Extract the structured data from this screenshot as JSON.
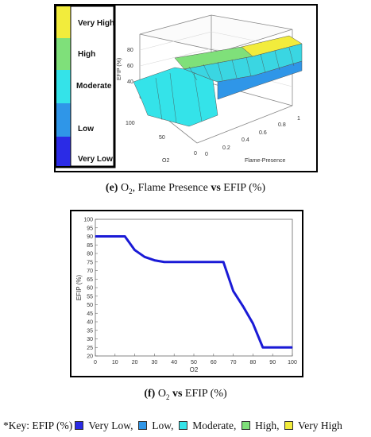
{
  "colors": {
    "very_high": "#f2ec3c",
    "high": "#7fe07a",
    "moderate": "#34e3e9",
    "low": "#2f96e8",
    "very_low": "#2b2be6",
    "line": "#1a1ad6"
  },
  "caption_e": {
    "letter": "(e)",
    "o": "O",
    "sub": "2",
    "mid": ", Flame Presence ",
    "vs": "vs",
    "end": " EFIP (%)"
  },
  "caption_f": {
    "letter": "(f)",
    "o": "O",
    "sub": "2",
    "vs": "vs",
    "end": " EFIP (%)"
  },
  "key": {
    "prefix": "*Key: EFIP (%)",
    "items": [
      {
        "label": "Very Low,",
        "color": "#2b2be6"
      },
      {
        "label": "Low,",
        "color": "#2f96e8"
      },
      {
        "label": "Moderate,",
        "color": "#34e3e9"
      },
      {
        "label": "High,",
        "color": "#7fe07a"
      },
      {
        "label": "Very High",
        "color": "#f2ec3c"
      }
    ]
  },
  "chart_data": [
    {
      "type": "surface",
      "legend": [
        "Very High",
        "High",
        "Moderate",
        "Low",
        "Very Low"
      ],
      "zlabel": "EFIP (%)",
      "xlabel": "Flame-Presence",
      "ylabel": "O2",
      "z_ticks": [
        "80",
        "60",
        "40"
      ],
      "y_ticks": [
        "100",
        "50",
        "0"
      ],
      "x_ticks": [
        "0",
        "0.2",
        "0.4",
        "0.6",
        "0.8",
        "1"
      ]
    },
    {
      "type": "line",
      "xlabel": "O2",
      "ylabel": "EFIP (%)",
      "xlim": [
        0,
        100
      ],
      "ylim": [
        20,
        100
      ],
      "x_ticks": [
        0,
        10,
        20,
        30,
        40,
        50,
        60,
        70,
        80,
        90,
        100
      ],
      "y_ticks": [
        20,
        25,
        30,
        35,
        40,
        45,
        50,
        55,
        60,
        65,
        70,
        75,
        80,
        85,
        90,
        95,
        100
      ],
      "grid": false,
      "x": [
        0,
        15,
        20,
        25,
        30,
        35,
        40,
        50,
        60,
        65,
        70,
        75,
        80,
        85,
        90,
        100
      ],
      "y": [
        90,
        90,
        82,
        78,
        76,
        75,
        75,
        75,
        75,
        75,
        58,
        49,
        39,
        25,
        25,
        25
      ]
    }
  ]
}
